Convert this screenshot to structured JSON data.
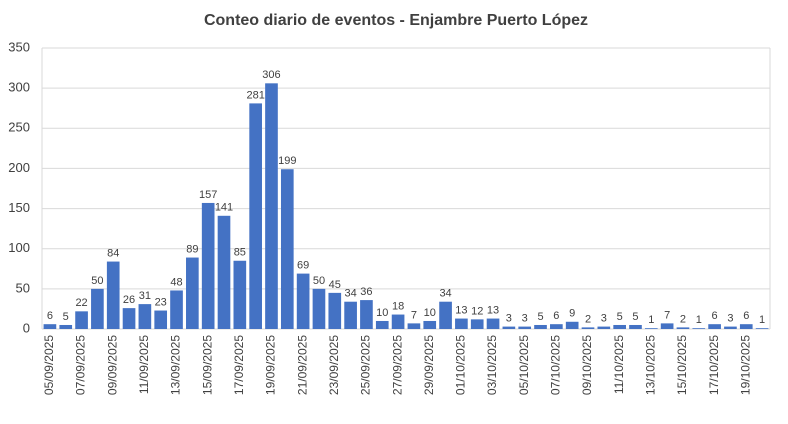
{
  "chart_data": {
    "type": "bar",
    "title": "Conteo diario de eventos - Enjambre Puerto López",
    "categories": [
      "05/09/2025",
      null,
      "07/09/2025",
      null,
      "09/09/2025",
      null,
      "11/09/2025",
      null,
      "13/09/2025",
      null,
      "15/09/2025",
      null,
      "17/09/2025",
      null,
      "19/09/2025",
      null,
      "21/09/2025",
      null,
      "23/09/2025",
      null,
      "25/09/2025",
      null,
      "27/09/2025",
      null,
      "29/09/2025",
      null,
      "01/10/2025",
      null,
      "03/10/2025",
      null,
      "05/10/2025",
      null,
      "07/10/2025",
      null,
      "09/10/2025",
      null,
      "11/10/2025",
      null,
      "13/10/2025",
      null,
      "15/10/2025",
      null,
      "17/10/2025",
      null,
      "19/10/2025",
      null
    ],
    "values": [
      6,
      5,
      22,
      50,
      84,
      26,
      31,
      23,
      48,
      89,
      157,
      141,
      85,
      281,
      306,
      199,
      69,
      50,
      45,
      34,
      36,
      10,
      18,
      7,
      10,
      34,
      13,
      12,
      13,
      3,
      3,
      5,
      6,
      9,
      2,
      3,
      5,
      5,
      1,
      7,
      2,
      1,
      6,
      3,
      6,
      1
    ],
    "color": "#4472c4",
    "ylim": [
      0,
      350
    ],
    "yticks": [
      0,
      50,
      100,
      150,
      200,
      250,
      300,
      350
    ],
    "grid": true
  }
}
